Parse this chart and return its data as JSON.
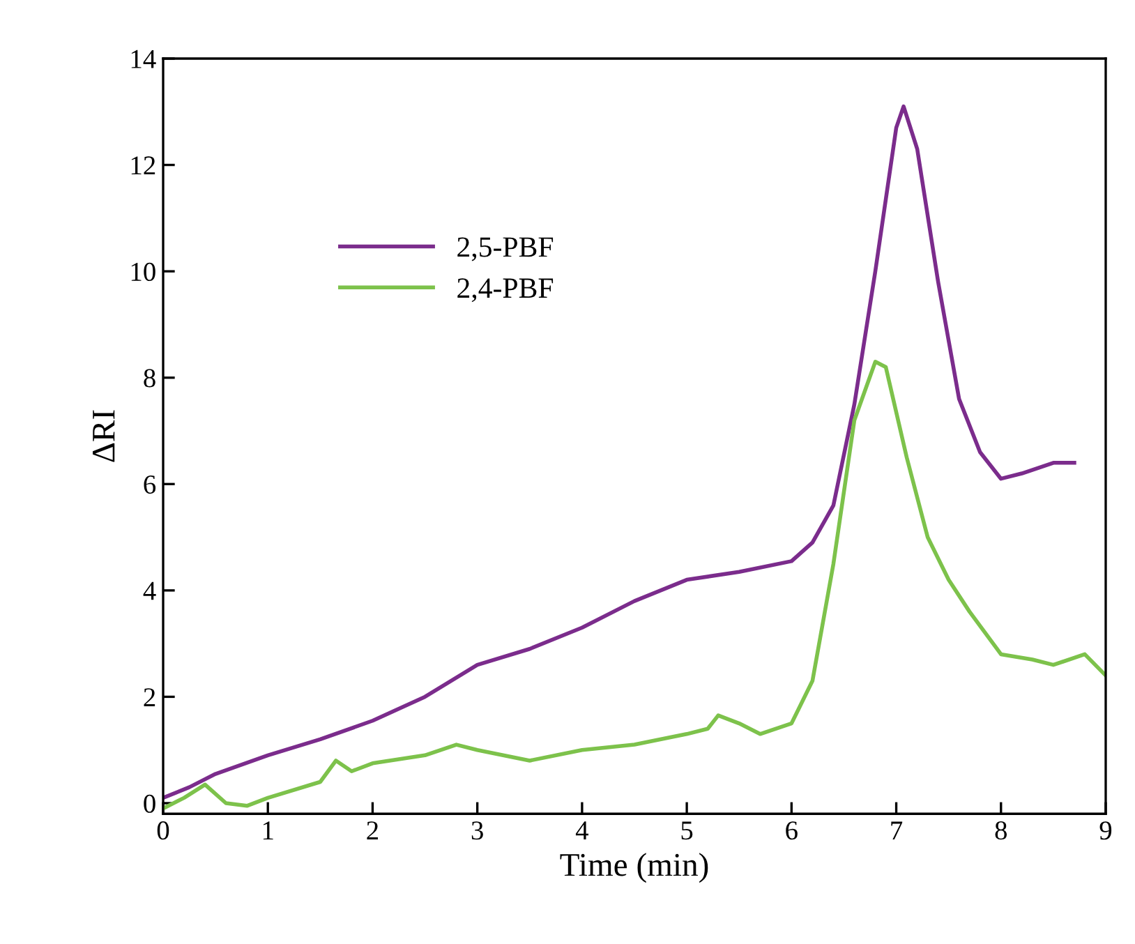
{
  "chart_data": {
    "type": "line",
    "xlabel": "Time (min)",
    "ylabel": "ΔRI",
    "xlim": [
      0,
      9
    ],
    "ylim": [
      -0.2,
      14
    ],
    "xticks": [
      0,
      1,
      2,
      3,
      4,
      5,
      6,
      7,
      8,
      9
    ],
    "yticks": [
      0,
      2,
      4,
      6,
      8,
      10,
      12,
      14
    ],
    "legend": "left",
    "grid": false,
    "marker": "none",
    "line_style": "solid",
    "series": [
      {
        "name": "2,5-PBF",
        "color": "#7b2c8c",
        "x": [
          0,
          0.25,
          0.5,
          1,
          1.5,
          2,
          2.5,
          3,
          3.5,
          4,
          4.5,
          5,
          5.5,
          6,
          6.2,
          6.4,
          6.6,
          6.8,
          7.0,
          7.07,
          7.2,
          7.4,
          7.6,
          7.8,
          8.0,
          8.2,
          8.5,
          8.7
        ],
        "values": [
          0.1,
          0.3,
          0.55,
          0.9,
          1.2,
          1.55,
          2.0,
          2.6,
          2.9,
          3.3,
          3.8,
          4.2,
          4.35,
          4.55,
          4.9,
          5.6,
          7.5,
          10.0,
          12.7,
          13.1,
          12.3,
          9.8,
          7.6,
          6.6,
          6.1,
          6.2,
          6.4,
          6.4
        ]
      },
      {
        "name": "2,4-PBF",
        "color": "#7dc24b",
        "x": [
          0,
          0.2,
          0.4,
          0.6,
          0.8,
          1,
          1.5,
          1.65,
          1.8,
          2,
          2.5,
          2.8,
          3,
          3.5,
          4,
          4.5,
          5,
          5.2,
          5.3,
          5.5,
          5.7,
          6,
          6.2,
          6.4,
          6.6,
          6.8,
          6.9,
          7.1,
          7.3,
          7.5,
          7.7,
          8,
          8.3,
          8.5,
          8.8,
          9
        ],
        "values": [
          -0.1,
          0.1,
          0.35,
          0.0,
          -0.05,
          0.1,
          0.4,
          0.8,
          0.6,
          0.75,
          0.9,
          1.1,
          1.0,
          0.8,
          1.0,
          1.1,
          1.3,
          1.4,
          1.65,
          1.5,
          1.3,
          1.5,
          2.3,
          4.5,
          7.2,
          8.3,
          8.2,
          6.5,
          5.0,
          4.2,
          3.6,
          2.8,
          2.7,
          2.6,
          2.8,
          2.4
        ]
      }
    ]
  }
}
